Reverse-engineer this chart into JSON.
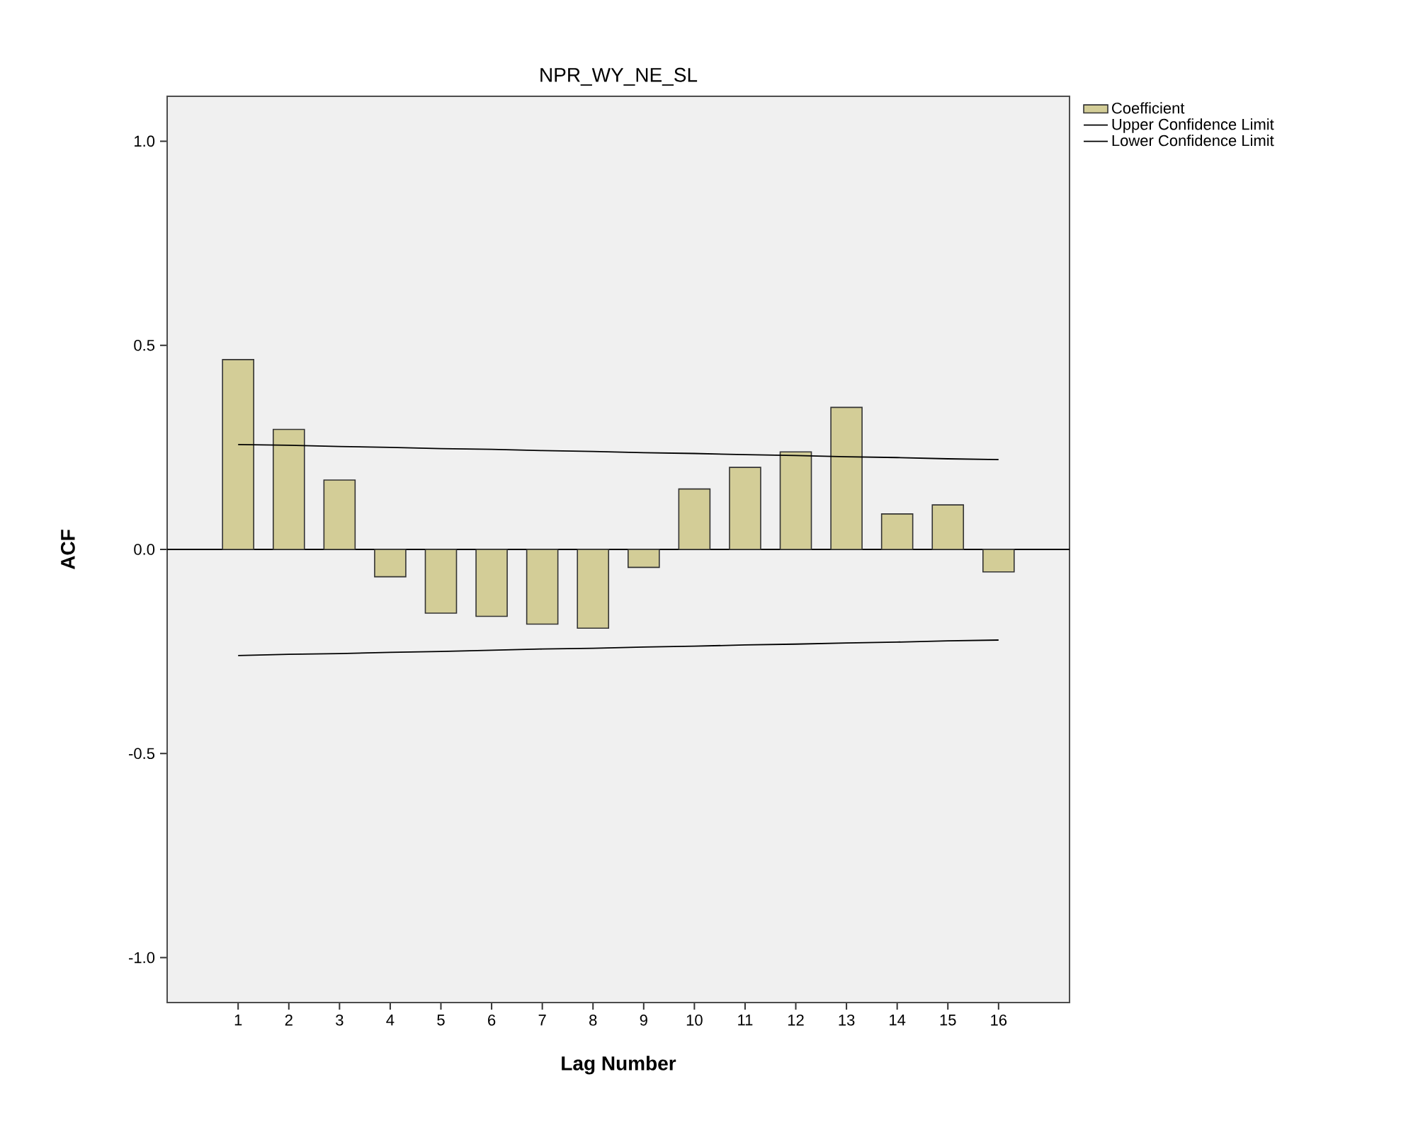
{
  "chart_data": {
    "type": "bar",
    "title": "NPR_WY_NE_SL",
    "xlabel": "Lag Number",
    "ylabel": "ACF",
    "categories": [
      "1",
      "2",
      "3",
      "4",
      "5",
      "6",
      "7",
      "8",
      "9",
      "10",
      "11",
      "12",
      "13",
      "14",
      "15",
      "16"
    ],
    "series": [
      {
        "name": "Coefficient",
        "color": "#d3cd97",
        "values": [
          0.465,
          0.294,
          0.17,
          -0.067,
          -0.156,
          -0.164,
          -0.183,
          -0.193,
          -0.044,
          0.148,
          0.201,
          0.239,
          0.348,
          0.087,
          0.109,
          -0.055
        ]
      },
      {
        "name": "Upper Confidence Limit",
        "type": "line",
        "color": "#000000",
        "values": [
          0.257,
          0.255,
          0.252,
          0.25,
          0.247,
          0.245,
          0.242,
          0.24,
          0.237,
          0.235,
          0.232,
          0.23,
          0.227,
          0.225,
          0.222,
          0.22
        ]
      },
      {
        "name": "Lower Confidence Limit",
        "type": "line",
        "color": "#000000",
        "values": [
          -0.26,
          -0.257,
          -0.255,
          -0.252,
          -0.25,
          -0.247,
          -0.244,
          -0.242,
          -0.239,
          -0.237,
          -0.234,
          -0.232,
          -0.229,
          -0.227,
          -0.224,
          -0.222
        ]
      }
    ],
    "ylim": [
      -1.11,
      1.11
    ],
    "yticks": [
      {
        "value": -1,
        "label": "-1.0"
      },
      {
        "value": -0.5,
        "label": "-0.5"
      },
      {
        "value": 0,
        "label": "0.0"
      },
      {
        "value": 0.5,
        "label": "0.5"
      },
      {
        "value": 1,
        "label": "1.0"
      }
    ],
    "ref_lines": [
      {
        "axis": "y",
        "value": 0,
        "color": "#000000"
      }
    ],
    "grid": false,
    "legend": "top right",
    "marker": "none",
    "line_style": "solid"
  }
}
